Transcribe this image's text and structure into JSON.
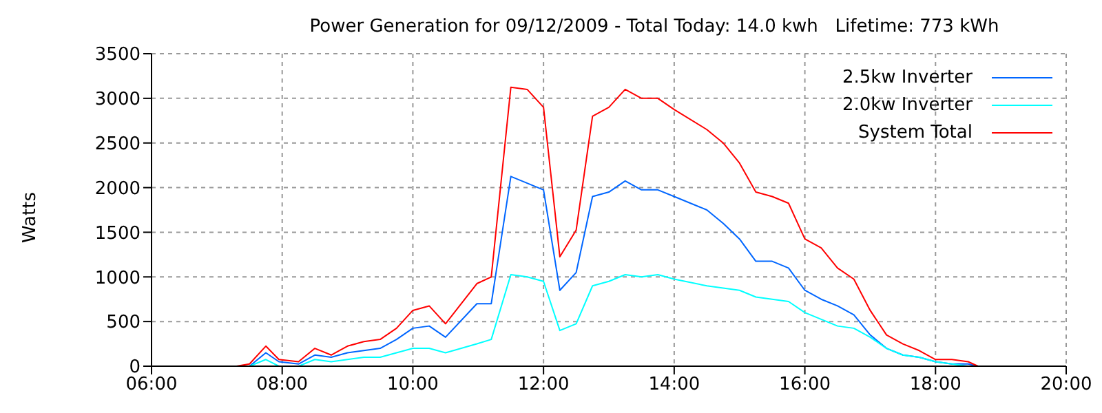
{
  "chart_data": {
    "type": "line",
    "title": "Power Generation for 09/12/2009 - Total Today: 14.0 kwh   Lifetime: 773 kWh",
    "ylabel": "Watts",
    "x": [
      7.3,
      7.5,
      7.75,
      7.95,
      8.25,
      8.5,
      8.75,
      9.0,
      9.25,
      9.5,
      9.75,
      10.0,
      10.25,
      10.5,
      10.98,
      11.2,
      11.5,
      11.75,
      12.0,
      12.25,
      12.5,
      12.75,
      13.0,
      13.25,
      13.5,
      13.75,
      14.0,
      14.5,
      14.75,
      15.0,
      15.25,
      15.5,
      15.75,
      16.0,
      16.25,
      16.5,
      16.75,
      17.0,
      17.25,
      17.5,
      17.75,
      18.0,
      18.25,
      18.5,
      18.65
    ],
    "series": [
      {
        "name": "2.5kw Inverter",
        "color": "#0066ff",
        "values": [
          0,
          0,
          150,
          50,
          25,
          125,
          100,
          150,
          175,
          200,
          300,
          425,
          450,
          325,
          700,
          700,
          2125,
          2050,
          1975,
          850,
          1050,
          1900,
          1950,
          2075,
          1975,
          1975,
          1900,
          1750,
          1600,
          1425,
          1175,
          1175,
          1100,
          850,
          750,
          675,
          575,
          350,
          200,
          125,
          100,
          50,
          25,
          25,
          0
        ]
      },
      {
        "name": "2.0kw Inverter",
        "color": "#00ffff",
        "values": [
          0,
          0,
          75,
          0,
          0,
          75,
          50,
          75,
          100,
          100,
          150,
          200,
          200,
          150,
          250,
          300,
          1025,
          1000,
          950,
          400,
          475,
          900,
          950,
          1025,
          1000,
          1025,
          975,
          900,
          875,
          850,
          775,
          750,
          725,
          600,
          525,
          450,
          425,
          325,
          200,
          125,
          100,
          50,
          25,
          0,
          0
        ]
      },
      {
        "name": "System Total",
        "color": "#ff0000",
        "values": [
          0,
          25,
          225,
          75,
          50,
          200,
          125,
          225,
          275,
          300,
          425,
          625,
          675,
          475,
          925,
          1000,
          3125,
          3100,
          2900,
          1225,
          1525,
          2800,
          2900,
          3100,
          3000,
          3000,
          2875,
          2650,
          2500,
          2275,
          1950,
          1900,
          1825,
          1425,
          1325,
          1100,
          975,
          625,
          350,
          250,
          175,
          75,
          75,
          50,
          0
        ]
      }
    ],
    "xlim": [
      6,
      20
    ],
    "xticks": [
      {
        "value": 6,
        "label": "06:00"
      },
      {
        "value": 8,
        "label": "08:00"
      },
      {
        "value": 10,
        "label": "10:00"
      },
      {
        "value": 12,
        "label": "12:00"
      },
      {
        "value": 14,
        "label": "14:00"
      },
      {
        "value": 16,
        "label": "16:00"
      },
      {
        "value": 18,
        "label": "18:00"
      },
      {
        "value": 20,
        "label": "20:00"
      }
    ],
    "ylim": [
      0,
      3500
    ],
    "yticks": [
      0,
      500,
      1000,
      1500,
      2000,
      2500,
      3000,
      3500
    ],
    "grid": true,
    "legend": "top right",
    "marker": "none",
    "line_style": "solid"
  }
}
